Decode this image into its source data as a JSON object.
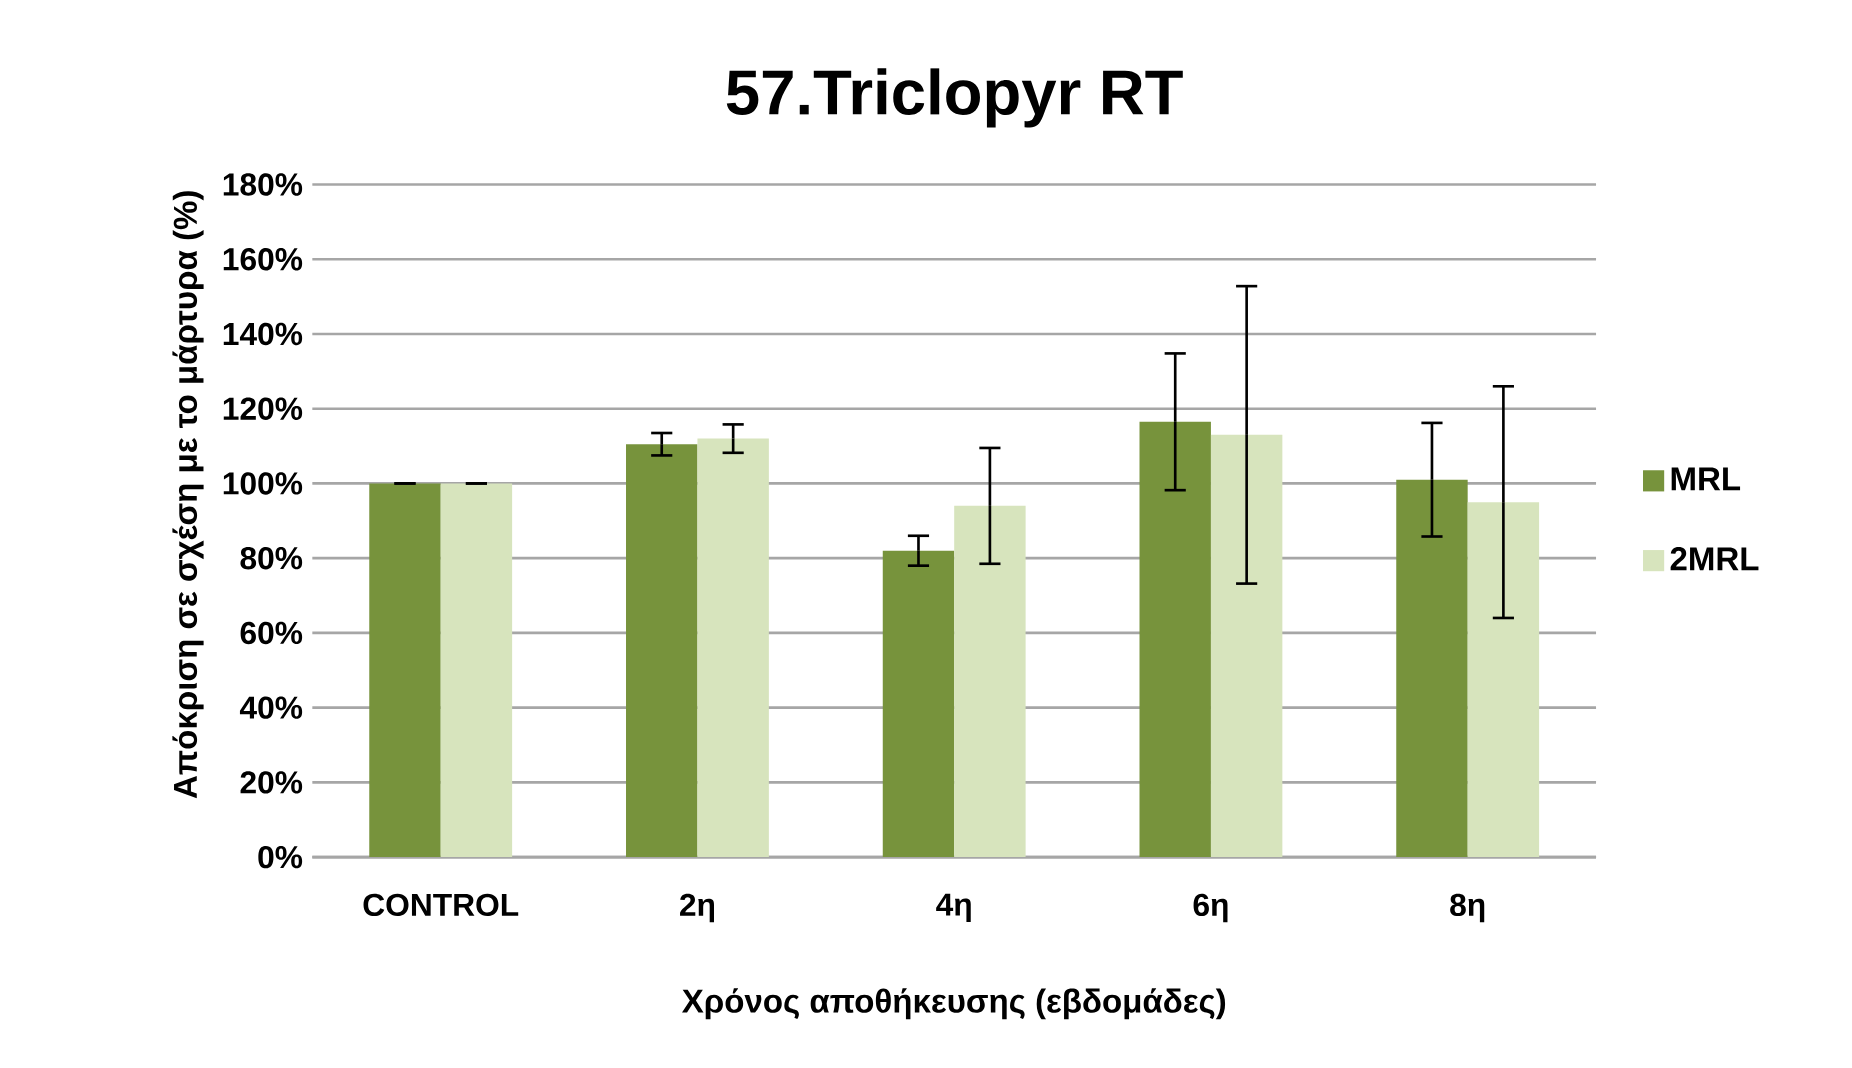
{
  "chart_data": {
    "type": "bar",
    "title": "57.Triclopyr RT",
    "xlabel": "Χρόνος αποθήκευσης (εβδομάδες)",
    "ylabel": "Απόκριση σε σχέση με το μάρτυρα (%)",
    "categories": [
      "CONTROL",
      "2η",
      "4η",
      "6η",
      "8η"
    ],
    "series": [
      {
        "name": "MRL",
        "color": "#77933c",
        "values": [
          100,
          110.5,
          82,
          116.5,
          101
        ],
        "errors": [
          0,
          3,
          4,
          18.3,
          15.2
        ]
      },
      {
        "name": "2MRL",
        "color": "#d7e4bd",
        "values": [
          100,
          112,
          94,
          113,
          95
        ],
        "errors": [
          0,
          3.8,
          15.5,
          39.8,
          31
        ]
      }
    ],
    "ylim": [
      0,
      180
    ],
    "yticks": [
      {
        "value": 0,
        "label": "0%"
      },
      {
        "value": 20,
        "label": "20%"
      },
      {
        "value": 40,
        "label": "40%"
      },
      {
        "value": 60,
        "label": "60%"
      },
      {
        "value": 80,
        "label": "80%"
      },
      {
        "value": 100,
        "label": "100%"
      },
      {
        "value": 120,
        "label": "120%"
      },
      {
        "value": 140,
        "label": "140%"
      },
      {
        "value": 160,
        "label": "160%"
      },
      {
        "value": 180,
        "label": "180%"
      }
    ],
    "grid": "y",
    "legend": "right"
  }
}
